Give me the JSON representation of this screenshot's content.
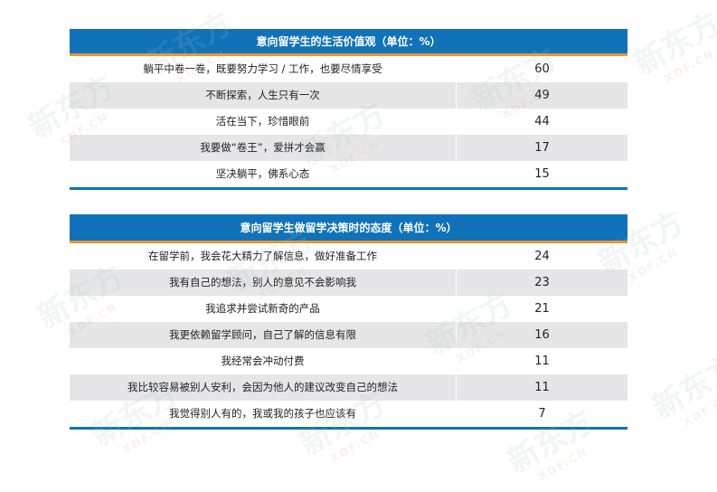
{
  "colors": {
    "header_bg": "#1072b9",
    "header_rule": "#f0932b",
    "alt_row": "#e6e6e8"
  },
  "watermark": {
    "brand": "新东方",
    "domain": "XDF.CN"
  },
  "table1": {
    "title": "意向留学生的生活价值观（单位：%）",
    "rows": [
      {
        "label": "躺平中卷一卷，既要努力学习 / 工作，也要尽情享受",
        "value": "60"
      },
      {
        "label": "不断探索，人生只有一次",
        "value": "49"
      },
      {
        "label": "活在当下，珍惜眼前",
        "value": "44"
      },
      {
        "label": "我要做“卷王”，爱拼才会赢",
        "value": "17"
      },
      {
        "label": "坚决躺平，佛系心态",
        "value": "15"
      }
    ]
  },
  "table2": {
    "title": "意向留学生做留学决策时的态度（单位：%）",
    "rows": [
      {
        "label": "在留学前，我会花大精力了解信息，做好准备工作",
        "value": "24"
      },
      {
        "label": "我有自己的想法，别人的意见不会影响我",
        "value": "23"
      },
      {
        "label": "我追求并尝试新奇的产品",
        "value": "21"
      },
      {
        "label": "我更依赖留学顾问，自己了解的信息有限",
        "value": "16"
      },
      {
        "label": "我经常会冲动付费",
        "value": "11"
      },
      {
        "label": "我比较容易被别人安利，会因为他人的建议改变自己的想法",
        "value": "11"
      },
      {
        "label": "我觉得别人有的，我或我的孩子也应该有",
        "value": "7"
      }
    ]
  }
}
